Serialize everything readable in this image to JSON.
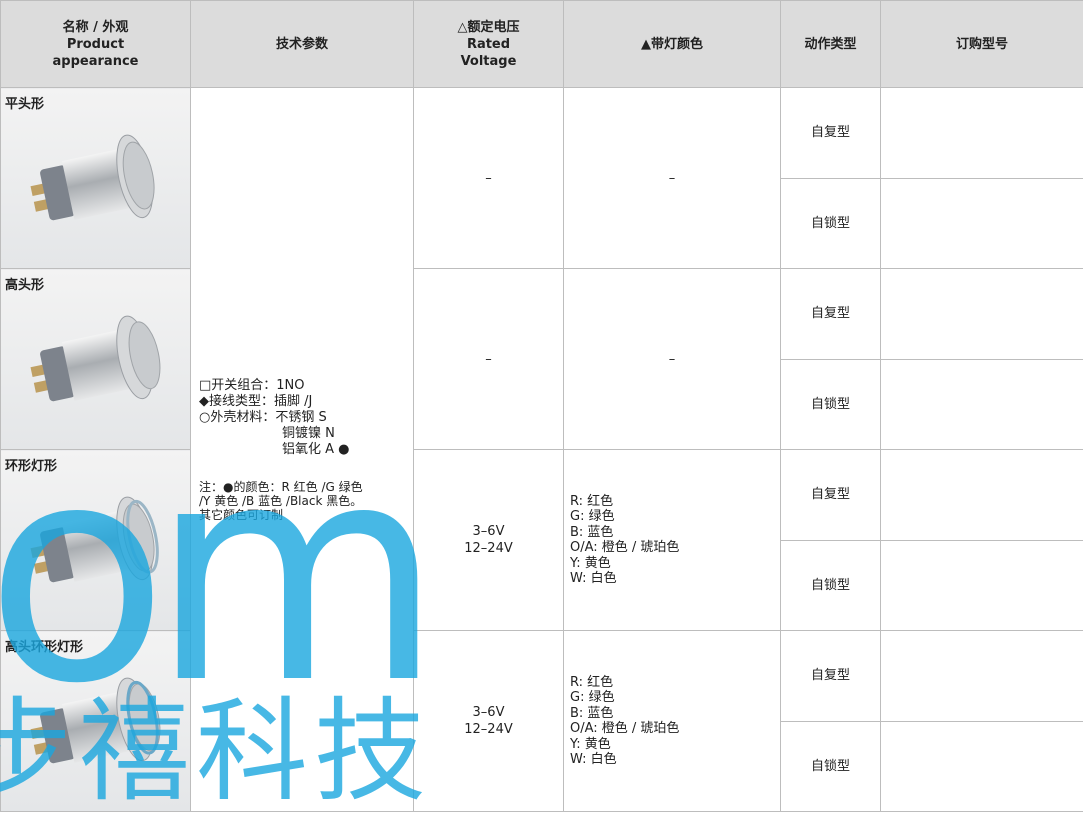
{
  "table": {
    "header": [
      [
        "名称 / 外观",
        "Product",
        "appearance"
      ],
      [
        "技术参数"
      ],
      [
        "△额定电压",
        "Rated",
        "Voltage"
      ],
      [
        "▲带灯颜色"
      ],
      [
        "动作类型"
      ],
      [
        "订购型号"
      ]
    ],
    "specs": [
      "□开关组合：1NO",
      "◆接线类型：插脚 /J",
      "○外壳材料：不锈钢 S",
      "铜镀镍 N",
      "铝氧化 A ●"
    ],
    "note": [
      "注：●的颜色：R 红色 /G 绿色",
      "/Y 黄色 /B 蓝色 /Black 黑色。",
      "其它颜色可订制"
    ],
    "groups": [
      {
        "name": "平头形",
        "voltage": [
          "–"
        ],
        "color": [
          "–"
        ],
        "actions": [
          "自复型",
          "自锁型"
        ]
      },
      {
        "name": "高头形",
        "voltage": [
          "–"
        ],
        "color": [
          "–"
        ],
        "actions": [
          "自复型",
          "自锁型"
        ]
      },
      {
        "name": "环形灯形",
        "voltage": [
          "3–6V",
          "12–24V"
        ],
        "color": [
          "R: 红色",
          "G: 绿色",
          "B: 蓝色",
          "O/A: 橙色 / 琥珀色",
          "Y: 黄色",
          "W: 白色"
        ],
        "actions": [
          "自复型",
          "自锁型"
        ]
      },
      {
        "name": "高头环形灯形",
        "voltage": [
          "3–6V",
          "12–24V"
        ],
        "color": [
          "R: 红色",
          "G: 绿色",
          "B: 蓝色",
          "O/A: 橙色 / 琥珀色",
          "Y: 黄色",
          "W: 白色"
        ],
        "actions": [
          "自复型",
          "自锁型"
        ]
      }
    ]
  },
  "watermark": {
    "logo": "om",
    "text": "步禧科技"
  }
}
